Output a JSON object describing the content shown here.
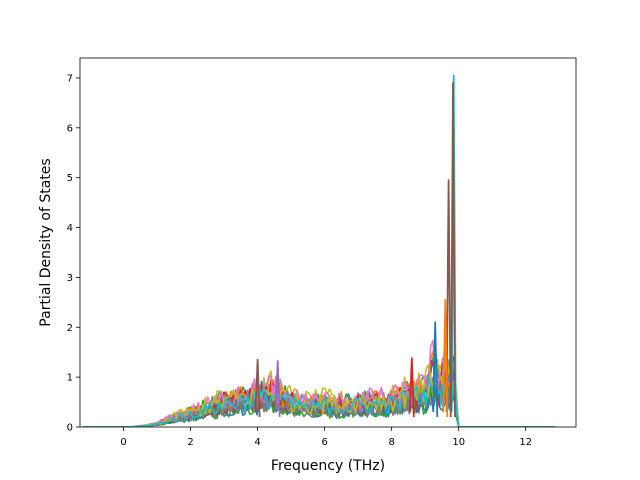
{
  "chart_data": {
    "type": "line",
    "title": "",
    "xlabel": "Frequency (THz)",
    "ylabel": "Partial Density of States",
    "xlim": [
      -1.3,
      13.5
    ],
    "ylim": [
      0,
      7.4
    ],
    "xticks": [
      "0",
      "2",
      "4",
      "6",
      "8",
      "10",
      "12"
    ],
    "yticks": [
      "0",
      "1",
      "2",
      "3",
      "4",
      "5",
      "6",
      "7"
    ],
    "grid": false,
    "legend": "none",
    "series_count": 20,
    "color_cycle": [
      "#1f77b4",
      "#ff7f0e",
      "#2ca02c",
      "#d62728",
      "#9467bd",
      "#8c564b",
      "#e377c2",
      "#7f7f7f",
      "#bcbd22",
      "#17becf"
    ],
    "x_range_of_data": [
      -1.2,
      12.9
    ],
    "envelope": {
      "x": [
        -1.2,
        0.2,
        0.7,
        1.0,
        1.5,
        2.0,
        2.5,
        3.0,
        3.5,
        4.0,
        4.5,
        5.0,
        5.5,
        6.0,
        6.5,
        7.0,
        7.5,
        8.0,
        8.5,
        9.0,
        9.3,
        9.5,
        9.6,
        9.7,
        9.8,
        9.85,
        9.9,
        10.0,
        12.9
      ],
      "y": [
        0,
        0,
        0.05,
        0.1,
        0.3,
        0.45,
        0.6,
        0.8,
        0.9,
        1.0,
        1.1,
        0.8,
        0.7,
        0.75,
        0.7,
        0.75,
        0.8,
        0.8,
        1.0,
        1.1,
        2.1,
        1.6,
        2.5,
        5.0,
        3.0,
        7.05,
        1.0,
        0,
        0
      ]
    },
    "peaks": [
      {
        "x": 9.85,
        "y": 7.05,
        "color": "#17becf"
      },
      {
        "x": 9.83,
        "y": 6.9,
        "color": "#8c564b"
      },
      {
        "x": 9.7,
        "y": 4.95,
        "color": "#8c564b"
      },
      {
        "x": 9.3,
        "y": 2.1,
        "color": "#1f77b4"
      },
      {
        "x": 9.6,
        "y": 2.55,
        "color": "#ff7f0e"
      },
      {
        "x": 8.6,
        "y": 1.38,
        "color": "#d62728"
      },
      {
        "x": 4.0,
        "y": 1.35,
        "color": "#8c564b"
      },
      {
        "x": 4.6,
        "y": 1.32,
        "color": "#9467bd"
      }
    ]
  }
}
